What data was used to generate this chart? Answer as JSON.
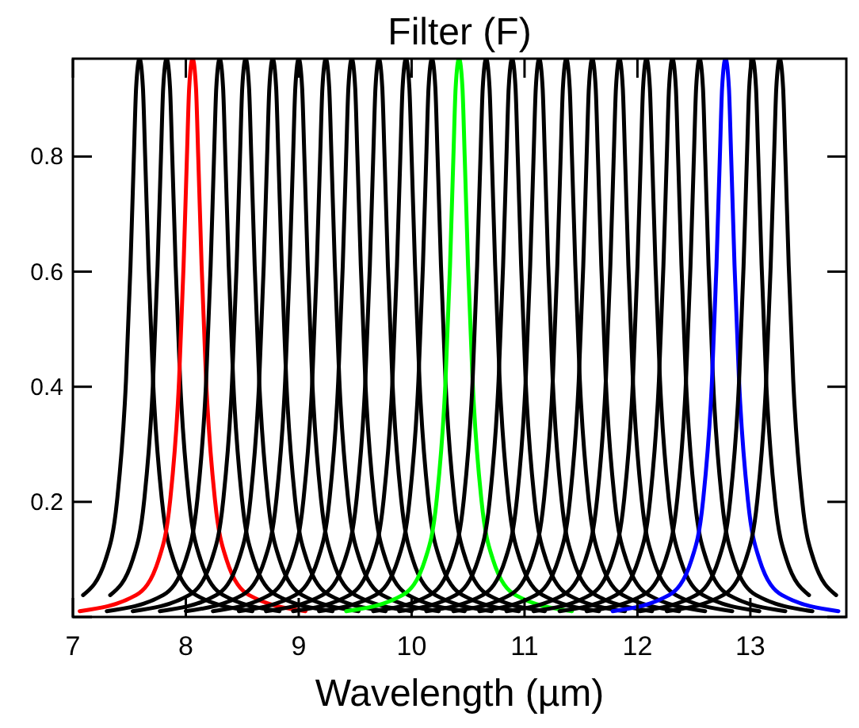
{
  "chart_data": {
    "type": "line",
    "title": "Filter (F)",
    "xlabel": "Wavelength (µm)",
    "xlim": [
      7,
      13.85
    ],
    "ylim": [
      0,
      0.97
    ],
    "xticks": [
      7,
      8,
      9,
      10,
      11,
      12,
      13
    ],
    "yticks": [
      {
        "value": 0,
        "label": null
      },
      0.2,
      0.4,
      0.6,
      0.8
    ],
    "grid": false,
    "marker": "none",
    "line_style": "solid",
    "series": [
      {
        "color": "#000000",
        "x": [
          7.09,
          7.29,
          7.39,
          7.47,
          7.51,
          7.54,
          7.56,
          7.59,
          7.62,
          7.64,
          7.67,
          7.71,
          7.79,
          7.89,
          8.09,
          8.59
        ],
        "values": [
          0.038,
          0.1,
          0.2,
          0.41,
          0.61,
          0.8,
          0.92,
          0.97,
          0.92,
          0.8,
          0.61,
          0.41,
          0.2,
          0.1,
          0.038,
          0.01
        ]
      },
      {
        "color": "#000000",
        "x": [
          7.33,
          7.53,
          7.63,
          7.71,
          7.75,
          7.78,
          7.8,
          7.83,
          7.86,
          7.88,
          7.91,
          7.95,
          8.03,
          8.13,
          8.33,
          8.83
        ],
        "values": [
          0.038,
          0.1,
          0.2,
          0.41,
          0.61,
          0.8,
          0.92,
          0.97,
          0.92,
          0.8,
          0.61,
          0.41,
          0.2,
          0.1,
          0.038,
          0.01
        ]
      },
      {
        "color": "#ff0000",
        "x": [
          7.06,
          7.56,
          7.76,
          7.86,
          7.94,
          7.98,
          8.01,
          8.03,
          8.06,
          8.09,
          8.11,
          8.14,
          8.18,
          8.26,
          8.36,
          8.56,
          9.06
        ],
        "values": [
          0.01,
          0.038,
          0.1,
          0.2,
          0.41,
          0.61,
          0.8,
          0.92,
          0.97,
          0.92,
          0.8,
          0.61,
          0.41,
          0.2,
          0.1,
          0.038,
          0.01
        ]
      },
      {
        "color": "#000000",
        "x": [
          7.3,
          7.8,
          8.0,
          8.1,
          8.18,
          8.22,
          8.25,
          8.27,
          8.3,
          8.33,
          8.35,
          8.38,
          8.42,
          8.5,
          8.6,
          8.8,
          9.3
        ],
        "values": [
          0.01,
          0.038,
          0.1,
          0.2,
          0.41,
          0.61,
          0.8,
          0.92,
          0.97,
          0.92,
          0.8,
          0.61,
          0.41,
          0.2,
          0.1,
          0.038,
          0.01
        ]
      },
      {
        "color": "#000000",
        "x": [
          7.53,
          8.03,
          8.23,
          8.33,
          8.41,
          8.45,
          8.48,
          8.5,
          8.53,
          8.56,
          8.58,
          8.61,
          8.65,
          8.73,
          8.83,
          9.03,
          9.53
        ],
        "values": [
          0.01,
          0.038,
          0.1,
          0.2,
          0.41,
          0.61,
          0.8,
          0.92,
          0.97,
          0.92,
          0.8,
          0.61,
          0.41,
          0.2,
          0.1,
          0.038,
          0.01
        ]
      },
      {
        "color": "#000000",
        "x": [
          7.77,
          8.27,
          8.47,
          8.57,
          8.65,
          8.69,
          8.72,
          8.74,
          8.77,
          8.8,
          8.82,
          8.85,
          8.89,
          8.97,
          9.07,
          9.27,
          9.77
        ],
        "values": [
          0.01,
          0.038,
          0.1,
          0.2,
          0.41,
          0.61,
          0.8,
          0.92,
          0.97,
          0.92,
          0.8,
          0.61,
          0.41,
          0.2,
          0.1,
          0.038,
          0.01
        ]
      },
      {
        "color": "#000000",
        "x": [
          8.0,
          8.5,
          8.7,
          8.8,
          8.88,
          8.92,
          8.95,
          8.97,
          9.0,
          9.03,
          9.05,
          9.08,
          9.12,
          9.2,
          9.3,
          9.5,
          10.0
        ],
        "values": [
          0.01,
          0.038,
          0.1,
          0.2,
          0.41,
          0.61,
          0.8,
          0.92,
          0.97,
          0.92,
          0.8,
          0.61,
          0.41,
          0.2,
          0.1,
          0.038,
          0.01
        ]
      },
      {
        "color": "#000000",
        "x": [
          8.24,
          8.74,
          8.94,
          9.04,
          9.12,
          9.16,
          9.19,
          9.21,
          9.24,
          9.27,
          9.29,
          9.32,
          9.36,
          9.44,
          9.54,
          9.74,
          10.24
        ],
        "values": [
          0.01,
          0.038,
          0.1,
          0.2,
          0.41,
          0.61,
          0.8,
          0.92,
          0.97,
          0.92,
          0.8,
          0.61,
          0.41,
          0.2,
          0.1,
          0.038,
          0.01
        ]
      },
      {
        "color": "#000000",
        "x": [
          8.47,
          8.97,
          9.17,
          9.27,
          9.35,
          9.39,
          9.42,
          9.44,
          9.47,
          9.5,
          9.52,
          9.55,
          9.59,
          9.67,
          9.77,
          9.97,
          10.47
        ],
        "values": [
          0.01,
          0.038,
          0.1,
          0.2,
          0.41,
          0.61,
          0.8,
          0.92,
          0.97,
          0.92,
          0.8,
          0.61,
          0.41,
          0.2,
          0.1,
          0.038,
          0.01
        ]
      },
      {
        "color": "#000000",
        "x": [
          8.71,
          9.21,
          9.41,
          9.51,
          9.59,
          9.63,
          9.66,
          9.68,
          9.71,
          9.74,
          9.76,
          9.79,
          9.83,
          9.91,
          10.01,
          10.21,
          10.71
        ],
        "values": [
          0.01,
          0.038,
          0.1,
          0.2,
          0.41,
          0.61,
          0.8,
          0.92,
          0.97,
          0.92,
          0.8,
          0.61,
          0.41,
          0.2,
          0.1,
          0.038,
          0.01
        ]
      },
      {
        "color": "#000000",
        "x": [
          8.95,
          9.45,
          9.65,
          9.75,
          9.83,
          9.87,
          9.9,
          9.92,
          9.95,
          9.98,
          10.0,
          10.03,
          10.07,
          10.15,
          10.25,
          10.45,
          10.95
        ],
        "values": [
          0.01,
          0.038,
          0.1,
          0.2,
          0.41,
          0.61,
          0.8,
          0.92,
          0.97,
          0.92,
          0.8,
          0.61,
          0.41,
          0.2,
          0.1,
          0.038,
          0.01
        ]
      },
      {
        "color": "#000000",
        "x": [
          9.18,
          9.68,
          9.88,
          9.98,
          10.06,
          10.1,
          10.13,
          10.15,
          10.18,
          10.21,
          10.23,
          10.26,
          10.3,
          10.38,
          10.48,
          10.68,
          11.18
        ],
        "values": [
          0.01,
          0.038,
          0.1,
          0.2,
          0.41,
          0.61,
          0.8,
          0.92,
          0.97,
          0.92,
          0.8,
          0.61,
          0.41,
          0.2,
          0.1,
          0.038,
          0.01
        ]
      },
      {
        "color": "#00ff00",
        "x": [
          9.42,
          9.92,
          10.12,
          10.22,
          10.3,
          10.34,
          10.37,
          10.39,
          10.42,
          10.45,
          10.47,
          10.5,
          10.54,
          10.62,
          10.72,
          10.92,
          11.42
        ],
        "values": [
          0.01,
          0.038,
          0.1,
          0.2,
          0.41,
          0.61,
          0.8,
          0.92,
          0.97,
          0.92,
          0.8,
          0.61,
          0.41,
          0.2,
          0.1,
          0.038,
          0.01
        ]
      },
      {
        "color": "#000000",
        "x": [
          9.66,
          10.16,
          10.36,
          10.46,
          10.54,
          10.58,
          10.61,
          10.63,
          10.66,
          10.69,
          10.71,
          10.74,
          10.78,
          10.86,
          10.96,
          11.16,
          11.66
        ],
        "values": [
          0.01,
          0.038,
          0.1,
          0.2,
          0.41,
          0.61,
          0.8,
          0.92,
          0.97,
          0.92,
          0.8,
          0.61,
          0.41,
          0.2,
          0.1,
          0.038,
          0.01
        ]
      },
      {
        "color": "#000000",
        "x": [
          9.89,
          10.39,
          10.59,
          10.69,
          10.77,
          10.81,
          10.84,
          10.86,
          10.89,
          10.92,
          10.94,
          10.97,
          11.01,
          11.09,
          11.19,
          11.39,
          11.89
        ],
        "values": [
          0.01,
          0.038,
          0.1,
          0.2,
          0.41,
          0.61,
          0.8,
          0.92,
          0.97,
          0.92,
          0.8,
          0.61,
          0.41,
          0.2,
          0.1,
          0.038,
          0.01
        ]
      },
      {
        "color": "#000000",
        "x": [
          10.13,
          10.63,
          10.83,
          10.93,
          11.01,
          11.05,
          11.08,
          11.1,
          11.13,
          11.16,
          11.18,
          11.21,
          11.25,
          11.33,
          11.43,
          11.63,
          12.13
        ],
        "values": [
          0.01,
          0.038,
          0.1,
          0.2,
          0.41,
          0.61,
          0.8,
          0.92,
          0.97,
          0.92,
          0.8,
          0.61,
          0.41,
          0.2,
          0.1,
          0.038,
          0.01
        ]
      },
      {
        "color": "#000000",
        "x": [
          10.37,
          10.87,
          11.07,
          11.17,
          11.25,
          11.29,
          11.32,
          11.34,
          11.37,
          11.4,
          11.42,
          11.45,
          11.49,
          11.57,
          11.67,
          11.87,
          12.37
        ],
        "values": [
          0.01,
          0.038,
          0.1,
          0.2,
          0.41,
          0.61,
          0.8,
          0.92,
          0.97,
          0.92,
          0.8,
          0.61,
          0.41,
          0.2,
          0.1,
          0.038,
          0.01
        ]
      },
      {
        "color": "#000000",
        "x": [
          10.6,
          11.1,
          11.3,
          11.4,
          11.48,
          11.52,
          11.55,
          11.57,
          11.6,
          11.63,
          11.65,
          11.68,
          11.72,
          11.8,
          11.9,
          12.1,
          12.6
        ],
        "values": [
          0.01,
          0.038,
          0.1,
          0.2,
          0.41,
          0.61,
          0.8,
          0.92,
          0.97,
          0.92,
          0.8,
          0.61,
          0.41,
          0.2,
          0.1,
          0.038,
          0.01
        ]
      },
      {
        "color": "#000000",
        "x": [
          10.84,
          11.34,
          11.54,
          11.64,
          11.72,
          11.76,
          11.79,
          11.81,
          11.84,
          11.87,
          11.89,
          11.92,
          11.96,
          12.04,
          12.14,
          12.34,
          12.84
        ],
        "values": [
          0.01,
          0.038,
          0.1,
          0.2,
          0.41,
          0.61,
          0.8,
          0.92,
          0.97,
          0.92,
          0.8,
          0.61,
          0.41,
          0.2,
          0.1,
          0.038,
          0.01
        ]
      },
      {
        "color": "#000000",
        "x": [
          11.08,
          11.58,
          11.78,
          11.88,
          11.96,
          12.0,
          12.03,
          12.05,
          12.08,
          12.11,
          12.13,
          12.16,
          12.2,
          12.28,
          12.38,
          12.58,
          13.08
        ],
        "values": [
          0.01,
          0.038,
          0.1,
          0.2,
          0.41,
          0.61,
          0.8,
          0.92,
          0.97,
          0.92,
          0.8,
          0.61,
          0.41,
          0.2,
          0.1,
          0.038,
          0.01
        ]
      },
      {
        "color": "#000000",
        "x": [
          11.31,
          11.81,
          12.01,
          12.11,
          12.19,
          12.23,
          12.26,
          12.28,
          12.31,
          12.34,
          12.36,
          12.39,
          12.43,
          12.51,
          12.61,
          12.81,
          13.31
        ],
        "values": [
          0.01,
          0.038,
          0.1,
          0.2,
          0.41,
          0.61,
          0.8,
          0.92,
          0.97,
          0.92,
          0.8,
          0.61,
          0.41,
          0.2,
          0.1,
          0.038,
          0.01
        ]
      },
      {
        "color": "#000000",
        "x": [
          11.55,
          12.05,
          12.25,
          12.35,
          12.43,
          12.47,
          12.5,
          12.52,
          12.55,
          12.58,
          12.6,
          12.63,
          12.67,
          12.75,
          12.85,
          13.05,
          13.55
        ],
        "values": [
          0.01,
          0.038,
          0.1,
          0.2,
          0.41,
          0.61,
          0.8,
          0.92,
          0.97,
          0.92,
          0.8,
          0.61,
          0.41,
          0.2,
          0.1,
          0.038,
          0.01
        ]
      },
      {
        "color": "#0000ff",
        "x": [
          11.78,
          12.28,
          12.48,
          12.58,
          12.66,
          12.7,
          12.73,
          12.75,
          12.78,
          12.81,
          12.83,
          12.86,
          12.9,
          12.98,
          13.08,
          13.28,
          13.78
        ],
        "values": [
          0.01,
          0.038,
          0.1,
          0.2,
          0.41,
          0.61,
          0.8,
          0.92,
          0.97,
          0.92,
          0.8,
          0.61,
          0.41,
          0.2,
          0.1,
          0.038,
          0.01
        ]
      },
      {
        "color": "#000000",
        "x": [
          12.02,
          12.52,
          12.72,
          12.82,
          12.9,
          12.94,
          12.97,
          12.99,
          13.02,
          13.05,
          13.07,
          13.1,
          13.14,
          13.22,
          13.32,
          13.52
        ],
        "values": [
          0.01,
          0.038,
          0.1,
          0.2,
          0.41,
          0.61,
          0.8,
          0.92,
          0.97,
          0.92,
          0.8,
          0.61,
          0.41,
          0.2,
          0.1,
          0.038
        ]
      },
      {
        "color": "#000000",
        "x": [
          12.26,
          12.76,
          12.96,
          13.06,
          13.14,
          13.18,
          13.21,
          13.23,
          13.26,
          13.29,
          13.31,
          13.34,
          13.38,
          13.46,
          13.56,
          13.76
        ],
        "values": [
          0.01,
          0.038,
          0.1,
          0.2,
          0.41,
          0.61,
          0.8,
          0.92,
          0.97,
          0.92,
          0.8,
          0.61,
          0.41,
          0.2,
          0.1,
          0.038
        ]
      }
    ]
  }
}
